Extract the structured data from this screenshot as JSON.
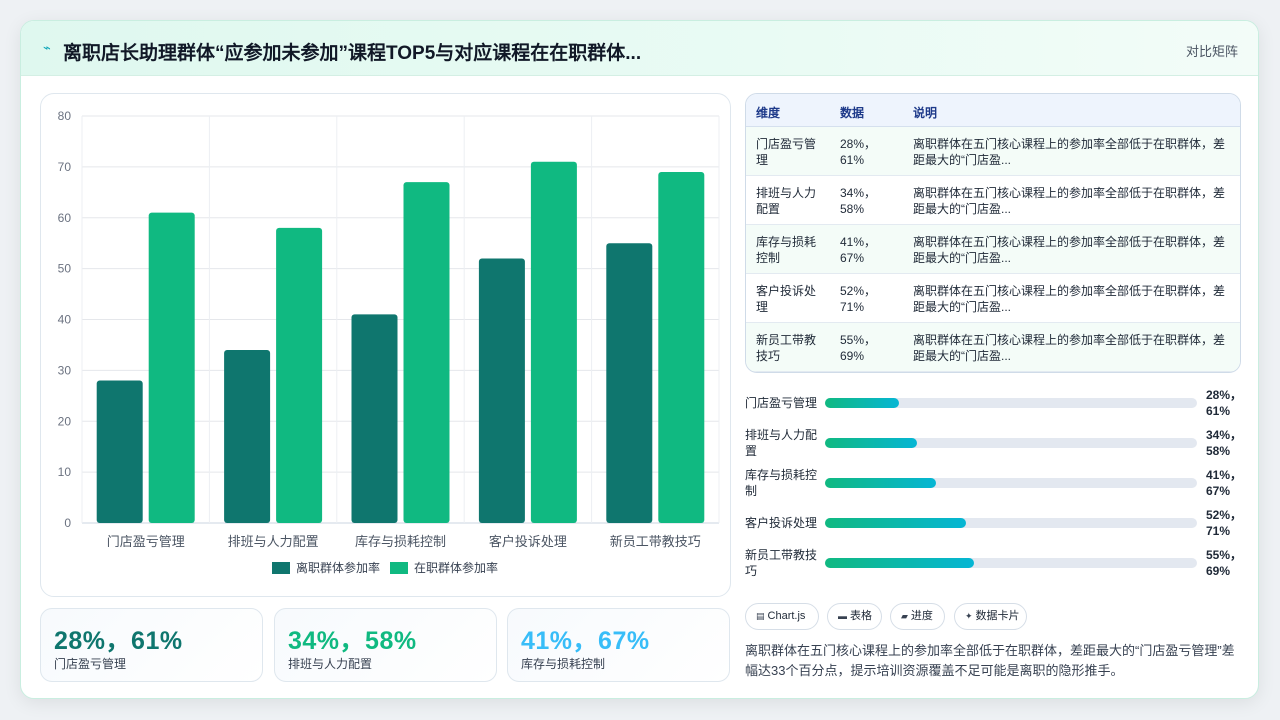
{
  "header": {
    "title": "离职店长助理群体“应参加未参加”课程TOP5与对应课程在在职群体...",
    "mode_label": "对比矩阵",
    "logo_icon": "spark-icon"
  },
  "chart_data": {
    "type": "bar",
    "categories": [
      "门店盈亏管理",
      "排班与人力配置",
      "库存与损耗控制",
      "客户投诉处理",
      "新员工带教技巧"
    ],
    "series": [
      {
        "name": "离职群体参加率",
        "values": [
          28,
          34,
          41,
          52,
          55
        ],
        "color": "#0f766e"
      },
      {
        "name": "在职群体参加率",
        "values": [
          61,
          58,
          67,
          71,
          69
        ],
        "color": "#10b981"
      }
    ],
    "ylim": [
      0,
      80
    ],
    "yticks": [
      0,
      10,
      20,
      30,
      40,
      50,
      60,
      70,
      80
    ],
    "grid": true,
    "legend_position": "bottom",
    "xlabel": "",
    "ylabel": ""
  },
  "kpis": [
    {
      "value": "28%，61%",
      "label": "门店盈亏管理",
      "color": "#0f766e"
    },
    {
      "value": "34%，58%",
      "label": "排班与人力配置",
      "color": "#10b981"
    },
    {
      "value": "41%，67%",
      "label": "库存与损耗控制",
      "color": "#38bdf8"
    }
  ],
  "table": {
    "headers": [
      "维度",
      "数据",
      "说明"
    ],
    "rows": [
      {
        "dim": "门店盈亏管理",
        "data": "28%，61%",
        "desc": "离职群体在五门核心课程上的参加率全部低于在职群体，差距最大的“门店盈..."
      },
      {
        "dim": "排班与人力配置",
        "data": "34%，58%",
        "desc": "离职群体在五门核心课程上的参加率全部低于在职群体，差距最大的“门店盈..."
      },
      {
        "dim": "库存与损耗控制",
        "data": "41%，67%",
        "desc": "离职群体在五门核心课程上的参加率全部低于在职群体，差距最大的“门店盈..."
      },
      {
        "dim": "客户投诉处理",
        "data": "52%，71%",
        "desc": "离职群体在五门核心课程上的参加率全部低于在职群体，差距最大的“门店盈..."
      },
      {
        "dim": "新员工带教技巧",
        "data": "55%，69%",
        "desc": "离职群体在五门核心课程上的参加率全部低于在职群体，差距最大的“门店盈..."
      }
    ]
  },
  "progress": [
    {
      "label": "门店盈亏管理",
      "value": "28%，61%",
      "level": 0.2
    },
    {
      "label": "排班与人力配置",
      "value": "34%，58%",
      "level": 0.246
    },
    {
      "label": "库存与损耗控制",
      "value": "41%，67%",
      "level": 0.298
    },
    {
      "label": "客户投诉处理",
      "value": "52%，71%",
      "level": 0.379
    },
    {
      "label": "新员工带教技巧",
      "value": "55%，69%",
      "level": 0.401
    }
  ],
  "chips": [
    {
      "icon": "chart-icon",
      "glyph": "▤",
      "label": "Chart.js"
    },
    {
      "icon": "table-icon",
      "glyph": "▬",
      "label": "表格"
    },
    {
      "icon": "progress-icon",
      "glyph": "▰",
      "label": "进度"
    },
    {
      "icon": "card-icon",
      "glyph": "✦",
      "label": "数据卡片"
    }
  ],
  "summary": "离职群体在五门核心课程上的参加率全部低于在职群体，差距最大的“门店盈亏管理”差幅达33个百分点，提示培训资源覆盖不足可能是离职的隐形推手。"
}
